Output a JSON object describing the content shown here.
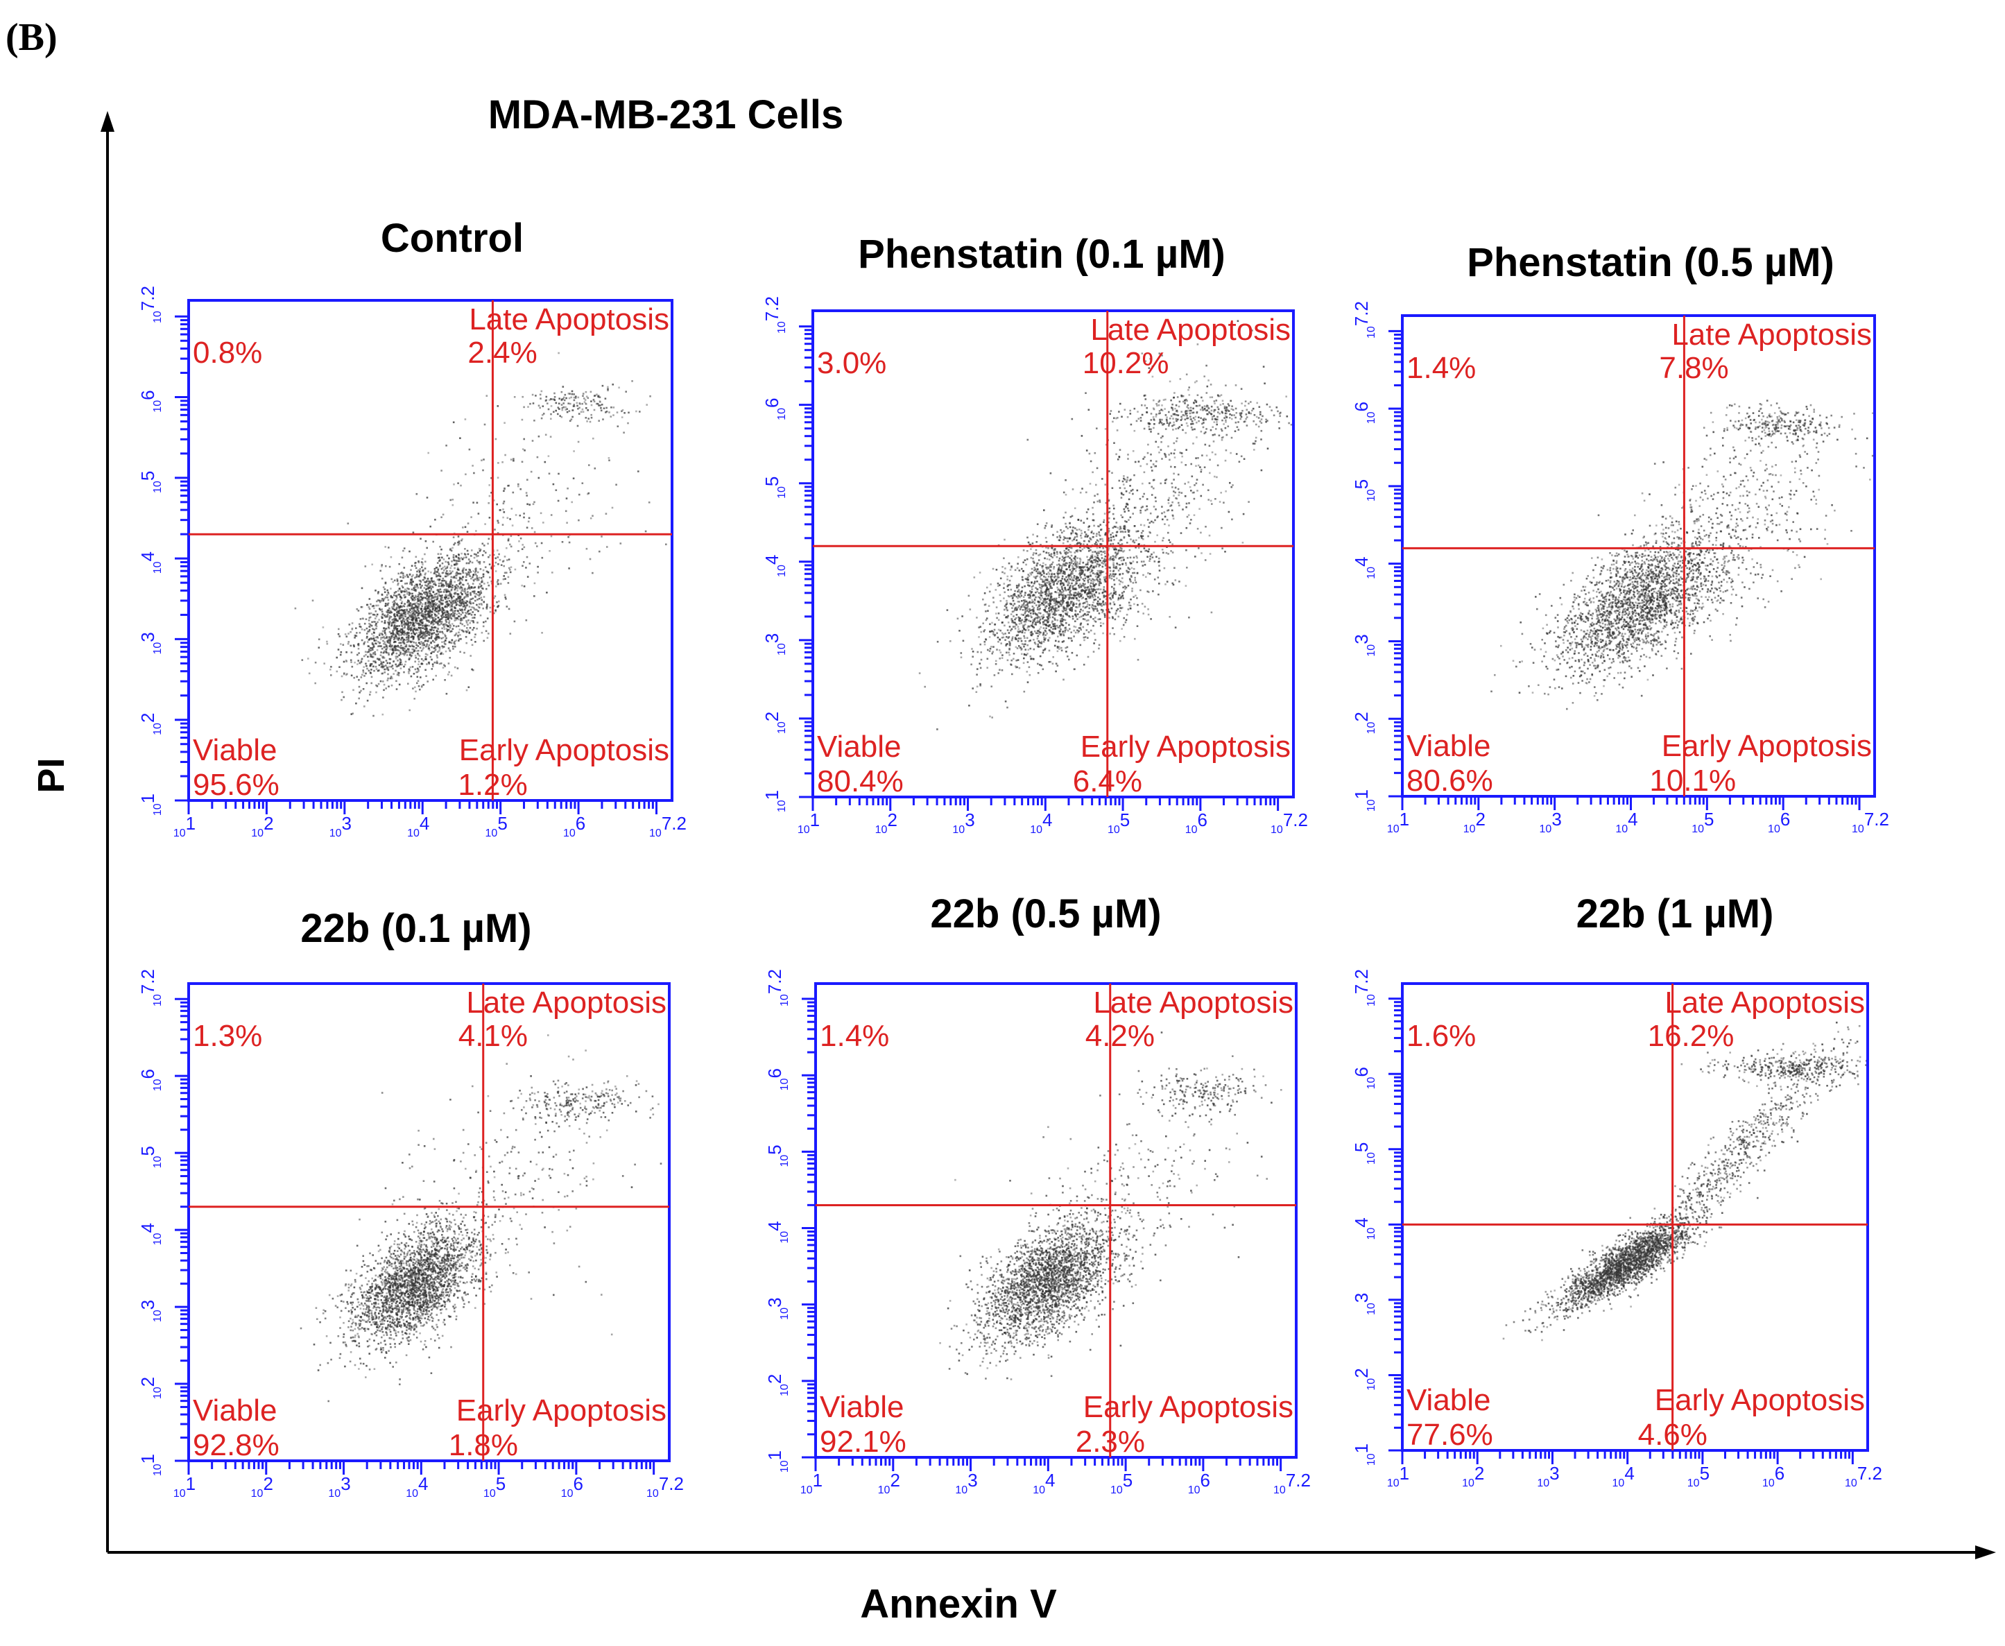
{
  "panel_label": "(B)",
  "title": "MDA-MB-231 Cells",
  "y_axis_label": "PI",
  "x_axis_label": "Annexin V",
  "colors": {
    "frame": "#1a1aff",
    "gate": "#dd2222",
    "quadrant_text": "#dd2222",
    "events": "#333333",
    "axis": "#000000"
  },
  "chart_data": [
    {
      "type": "scatter",
      "title": "Control",
      "xlabel": "Annexin V",
      "ylabel": "PI",
      "axis_scale": "log10",
      "xlim": [
        1,
        7.2
      ],
      "ylim": [
        1,
        7.2
      ],
      "tick_labels": [
        "10^1",
        "10^2",
        "10^3",
        "10^4",
        "10^5",
        "10^6",
        "10^7.2"
      ],
      "gate": {
        "x": 4.9,
        "y": 4.3
      },
      "quadrants": {
        "upper_left": {
          "label": "",
          "percent": "0.8%"
        },
        "upper_right": {
          "label": "Late Apoptosis",
          "percent": "2.4%"
        },
        "lower_left": {
          "label": "Viable",
          "percent": "95.6%"
        },
        "lower_right": {
          "label": "Early Apoptosis",
          "percent": "1.2%"
        }
      },
      "populations": [
        {
          "center": [
            4.0,
            3.3
          ],
          "spread": [
            0.45,
            0.4
          ],
          "corr": 0.55,
          "n": 2600
        },
        {
          "center": [
            6.0,
            5.9
          ],
          "spread": [
            0.35,
            0.12
          ],
          "corr": 0.0,
          "n": 160
        },
        {
          "center": [
            5.1,
            4.6
          ],
          "spread": [
            0.8,
            0.7
          ],
          "corr": 0.4,
          "n": 220
        }
      ]
    },
    {
      "type": "scatter",
      "title": "Phenstatin (0.1 µM)",
      "xlabel": "Annexin V",
      "ylabel": "PI",
      "axis_scale": "log10",
      "xlim": [
        1,
        7.2
      ],
      "ylim": [
        1,
        7.2
      ],
      "tick_labels": [
        "10^1",
        "10^2",
        "10^3",
        "10^4",
        "10^5",
        "10^6",
        "10^7.2"
      ],
      "gate": {
        "x": 4.8,
        "y": 4.2
      },
      "quadrants": {
        "upper_left": {
          "label": "",
          "percent": "3.0%"
        },
        "upper_right": {
          "label": "Late Apoptosis",
          "percent": "10.2%"
        },
        "lower_left": {
          "label": "Viable",
          "percent": "80.4%"
        },
        "lower_right": {
          "label": "Early Apoptosis",
          "percent": "6.4%"
        }
      },
      "populations": [
        {
          "center": [
            4.2,
            3.6
          ],
          "spread": [
            0.5,
            0.45
          ],
          "corr": 0.55,
          "n": 2200
        },
        {
          "center": [
            6.0,
            5.9
          ],
          "spread": [
            0.45,
            0.12
          ],
          "corr": 0.0,
          "n": 320
        },
        {
          "center": [
            5.4,
            4.9
          ],
          "spread": [
            0.6,
            0.75
          ],
          "corr": 0.3,
          "n": 520
        }
      ]
    },
    {
      "type": "scatter",
      "title": "Phenstatin (0.5 µM)",
      "xlabel": "Annexin V",
      "ylabel": "PI",
      "axis_scale": "log10",
      "xlim": [
        1,
        7.2
      ],
      "ylim": [
        1,
        7.2
      ],
      "tick_labels": [
        "10^1",
        "10^2",
        "10^3",
        "10^4",
        "10^5",
        "10^6",
        "10^7.2"
      ],
      "gate": {
        "x": 4.7,
        "y": 4.2
      },
      "quadrants": {
        "upper_left": {
          "label": "",
          "percent": "1.4%"
        },
        "upper_right": {
          "label": "Late Apoptosis",
          "percent": "7.8%"
        },
        "lower_left": {
          "label": "Viable",
          "percent": "80.6%"
        },
        "lower_right": {
          "label": "Early Apoptosis",
          "percent": "10.1%"
        }
      },
      "populations": [
        {
          "center": [
            4.1,
            3.5
          ],
          "spread": [
            0.55,
            0.45
          ],
          "corr": 0.6,
          "n": 2300
        },
        {
          "center": [
            6.0,
            5.8
          ],
          "spread": [
            0.4,
            0.12
          ],
          "corr": 0.0,
          "n": 260
        },
        {
          "center": [
            5.4,
            4.6
          ],
          "spread": [
            0.6,
            0.6
          ],
          "corr": 0.3,
          "n": 420
        }
      ]
    },
    {
      "type": "scatter",
      "title": "22b (0.1 µM)",
      "xlabel": "Annexin V",
      "ylabel": "PI",
      "axis_scale": "log10",
      "xlim": [
        1,
        7.2
      ],
      "ylim": [
        1,
        7.2
      ],
      "tick_labels": [
        "10^1",
        "10^2",
        "10^3",
        "10^4",
        "10^5",
        "10^6",
        "10^7.2"
      ],
      "gate": {
        "x": 4.8,
        "y": 4.3
      },
      "quadrants": {
        "upper_left": {
          "label": "",
          "percent": "1.3%"
        },
        "upper_right": {
          "label": "Late Apoptosis",
          "percent": "4.1%"
        },
        "lower_left": {
          "label": "Viable",
          "percent": "92.8%"
        },
        "lower_right": {
          "label": "Early Apoptosis",
          "percent": "1.8%"
        }
      },
      "populations": [
        {
          "center": [
            3.9,
            3.3
          ],
          "spread": [
            0.42,
            0.38
          ],
          "corr": 0.55,
          "n": 2500
        },
        {
          "center": [
            6.0,
            5.7
          ],
          "spread": [
            0.4,
            0.12
          ],
          "corr": 0.0,
          "n": 220
        },
        {
          "center": [
            5.2,
            4.7
          ],
          "spread": [
            0.8,
            0.7
          ],
          "corr": 0.4,
          "n": 240
        }
      ]
    },
    {
      "type": "scatter",
      "title": "22b (0.5 µM)",
      "xlabel": "Annexin V",
      "ylabel": "PI",
      "axis_scale": "log10",
      "xlim": [
        1,
        7.2
      ],
      "ylim": [
        1,
        7.2
      ],
      "tick_labels": [
        "10^1",
        "10^2",
        "10^3",
        "10^4",
        "10^5",
        "10^6",
        "10^7.2"
      ],
      "gate": {
        "x": 4.8,
        "y": 4.3
      },
      "quadrants": {
        "upper_left": {
          "label": "",
          "percent": "1.4%"
        },
        "upper_right": {
          "label": "Late Apoptosis",
          "percent": "4.2%"
        },
        "lower_left": {
          "label": "Viable",
          "percent": "92.1%"
        },
        "lower_right": {
          "label": "Early Apoptosis",
          "percent": "2.3%"
        }
      },
      "populations": [
        {
          "center": [
            4.0,
            3.3
          ],
          "spread": [
            0.45,
            0.4
          ],
          "corr": 0.55,
          "n": 2500
        },
        {
          "center": [
            6.0,
            5.8
          ],
          "spread": [
            0.35,
            0.12
          ],
          "corr": 0.0,
          "n": 180
        },
        {
          "center": [
            5.2,
            4.7
          ],
          "spread": [
            0.8,
            0.7
          ],
          "corr": 0.4,
          "n": 240
        }
      ]
    },
    {
      "type": "scatter",
      "title": "22b (1 µM)",
      "xlabel": "Annexin V",
      "ylabel": "PI",
      "axis_scale": "log10",
      "xlim": [
        1,
        7.2
      ],
      "ylim": [
        1,
        7.2
      ],
      "tick_labels": [
        "10^1",
        "10^2",
        "10^3",
        "10^4",
        "10^5",
        "10^6",
        "10^7.2"
      ],
      "gate": {
        "x": 4.6,
        "y": 4.0
      },
      "quadrants": {
        "upper_left": {
          "label": "",
          "percent": "1.6%"
        },
        "upper_right": {
          "label": "Late Apoptosis",
          "percent": "16.2%"
        },
        "lower_left": {
          "label": "Viable",
          "percent": "77.6%"
        },
        "lower_right": {
          "label": "Early Apoptosis",
          "percent": "4.6%"
        }
      },
      "populations": [
        {
          "center": [
            4.0,
            3.5
          ],
          "spread": [
            0.45,
            0.3
          ],
          "corr": 0.85,
          "n": 2200
        },
        {
          "center": [
            6.2,
            6.1
          ],
          "spread": [
            0.45,
            0.1
          ],
          "corr": 0.0,
          "n": 380
        },
        {
          "center": [
            5.5,
            5.0
          ],
          "spread": [
            0.7,
            0.7
          ],
          "corr": 0.95,
          "n": 600
        }
      ]
    }
  ]
}
